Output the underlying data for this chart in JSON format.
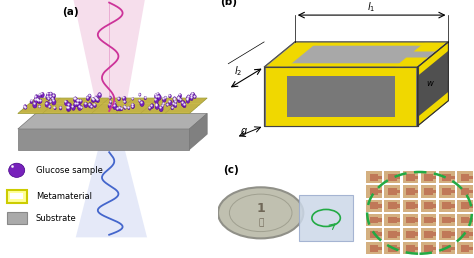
{
  "fig_width": 4.74,
  "fig_height": 2.58,
  "dpi": 100,
  "background_color": "#ffffff",
  "label_a": "(a)",
  "label_b": "(b)",
  "label_c": "(c)",
  "legend_fontsize": 6.0,
  "label_fontsize": 7.5,
  "substrate_color": "#b0b0b0",
  "substrate_front": "#909090",
  "substrate_right": "#808080",
  "meta_top_color": "#c8b84a",
  "meta_grid_color": "#a09030",
  "particle_color": "#7722bb",
  "particle_edge": "#440088",
  "beam_pink": "#cc3399",
  "beam_blue": "#4466cc",
  "cone_pink_color": "#f0c8e0",
  "cone_blue_color": "#d0d8f4",
  "srr_yellow": "#f0d800",
  "srr_gray": "#909090",
  "box_top": "#a0a0a0",
  "box_front": "#707070",
  "box_right": "#505050",
  "wood_color": "#8B5030",
  "coin_color": "#b8b8a8",
  "chip_color": "#c8d4e0",
  "array_bg": "#5a2510",
  "array_cell_bg": "#c07858",
  "array_cell_srr": "#d4a888",
  "dashed_green": "#22aa44"
}
